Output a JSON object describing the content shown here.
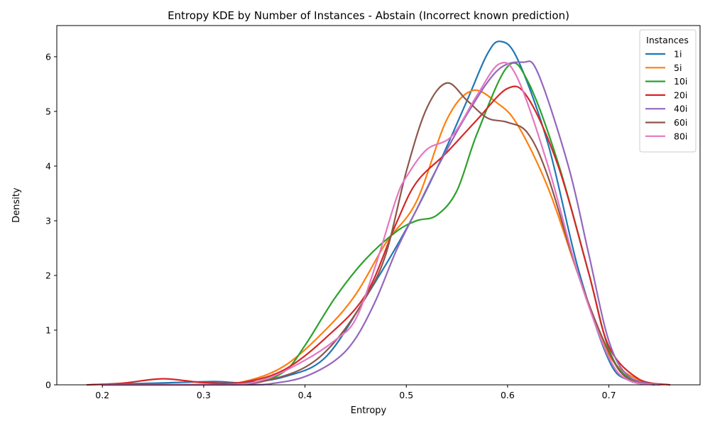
{
  "chart_data": {
    "type": "line",
    "title": "Entropy KDE by Number of Instances - Abstain (Incorrect known prediction)",
    "xlabel": "Entropy",
    "ylabel": "Density",
    "xlim": [
      0.155,
      0.79
    ],
    "ylim": [
      0,
      6.57
    ],
    "xticks": [
      0.2,
      0.3,
      0.4,
      0.5,
      0.6,
      0.7
    ],
    "xtick_labels": [
      "0.2",
      "0.3",
      "0.4",
      "0.5",
      "0.6",
      "0.7"
    ],
    "yticks": [
      0,
      1,
      2,
      3,
      4,
      5,
      6
    ],
    "ytick_labels": [
      "0",
      "1",
      "2",
      "3",
      "4",
      "5",
      "6"
    ],
    "grid": false,
    "legend": {
      "title": "Instances",
      "position": "top-right"
    },
    "series": [
      {
        "name": "1i",
        "color": "#1f77b4",
        "x": [
          0.2,
          0.25,
          0.31,
          0.34,
          0.38,
          0.42,
          0.46,
          0.5,
          0.53,
          0.56,
          0.58,
          0.593,
          0.61,
          0.64,
          0.67,
          0.7,
          0.72,
          0.745
        ],
        "y": [
          0.01,
          0.03,
          0.06,
          0.04,
          0.15,
          0.5,
          1.6,
          2.85,
          3.95,
          5.2,
          6.05,
          6.28,
          5.95,
          4.4,
          2.1,
          0.45,
          0.08,
          0.0
        ]
      },
      {
        "name": "5i",
        "color": "#ff7f0e",
        "x": [
          0.2,
          0.3,
          0.34,
          0.38,
          0.42,
          0.45,
          0.48,
          0.51,
          0.54,
          0.565,
          0.59,
          0.61,
          0.64,
          0.67,
          0.7,
          0.73,
          0.75
        ],
        "y": [
          0.0,
          0.0,
          0.06,
          0.35,
          1.0,
          1.65,
          2.6,
          3.35,
          4.85,
          5.38,
          5.15,
          4.75,
          3.6,
          2.0,
          0.55,
          0.08,
          0.0
        ]
      },
      {
        "name": "10i",
        "color": "#2ca02c",
        "x": [
          0.2,
          0.3,
          0.35,
          0.38,
          0.4,
          0.43,
          0.46,
          0.49,
          0.51,
          0.53,
          0.55,
          0.57,
          0.6,
          0.62,
          0.65,
          0.68,
          0.7,
          0.72,
          0.75
        ],
        "y": [
          0.0,
          0.0,
          0.03,
          0.25,
          0.72,
          1.6,
          2.3,
          2.8,
          3.0,
          3.1,
          3.55,
          4.6,
          5.82,
          5.55,
          4.05,
          2.05,
          0.65,
          0.12,
          0.0
        ]
      },
      {
        "name": "20i",
        "color": "#d62728",
        "x": [
          0.185,
          0.22,
          0.26,
          0.3,
          0.34,
          0.38,
          0.42,
          0.46,
          0.49,
          0.51,
          0.54,
          0.57,
          0.6,
          0.62,
          0.65,
          0.68,
          0.7,
          0.73,
          0.76
        ],
        "y": [
          0.0,
          0.03,
          0.11,
          0.04,
          0.05,
          0.28,
          0.85,
          1.65,
          2.95,
          3.7,
          4.25,
          4.85,
          5.42,
          5.25,
          4.0,
          2.05,
          0.7,
          0.1,
          0.0
        ]
      },
      {
        "name": "40i",
        "color": "#9467bd",
        "x": [
          0.2,
          0.34,
          0.37,
          0.4,
          0.43,
          0.45,
          0.47,
          0.49,
          0.51,
          0.53,
          0.56,
          0.59,
          0.615,
          0.63,
          0.66,
          0.68,
          0.7,
          0.72,
          0.75
        ],
        "y": [
          0.0,
          0.0,
          0.03,
          0.15,
          0.45,
          0.85,
          1.55,
          2.45,
          3.2,
          3.95,
          4.95,
          5.75,
          5.9,
          5.7,
          4.0,
          2.4,
          0.8,
          0.15,
          0.0
        ]
      },
      {
        "name": "60i",
        "color": "#8c564b",
        "x": [
          0.2,
          0.32,
          0.36,
          0.4,
          0.43,
          0.46,
          0.48,
          0.5,
          0.52,
          0.54,
          0.56,
          0.58,
          0.6,
          0.62,
          0.64,
          0.67,
          0.7,
          0.72,
          0.75
        ],
        "y": [
          0.0,
          0.0,
          0.07,
          0.32,
          0.8,
          1.6,
          2.4,
          3.9,
          5.05,
          5.52,
          5.2,
          4.88,
          4.8,
          4.6,
          3.8,
          2.0,
          0.6,
          0.1,
          0.0
        ]
      },
      {
        "name": "80i",
        "color": "#e377c2",
        "x": [
          0.2,
          0.32,
          0.36,
          0.4,
          0.43,
          0.45,
          0.47,
          0.49,
          0.5,
          0.52,
          0.545,
          0.57,
          0.592,
          0.61,
          0.64,
          0.67,
          0.7,
          0.72,
          0.75
        ],
        "y": [
          0.0,
          0.0,
          0.1,
          0.45,
          0.82,
          1.2,
          2.2,
          3.4,
          3.8,
          4.3,
          4.55,
          5.3,
          5.87,
          5.6,
          4.0,
          2.0,
          0.5,
          0.08,
          0.0
        ]
      }
    ]
  }
}
